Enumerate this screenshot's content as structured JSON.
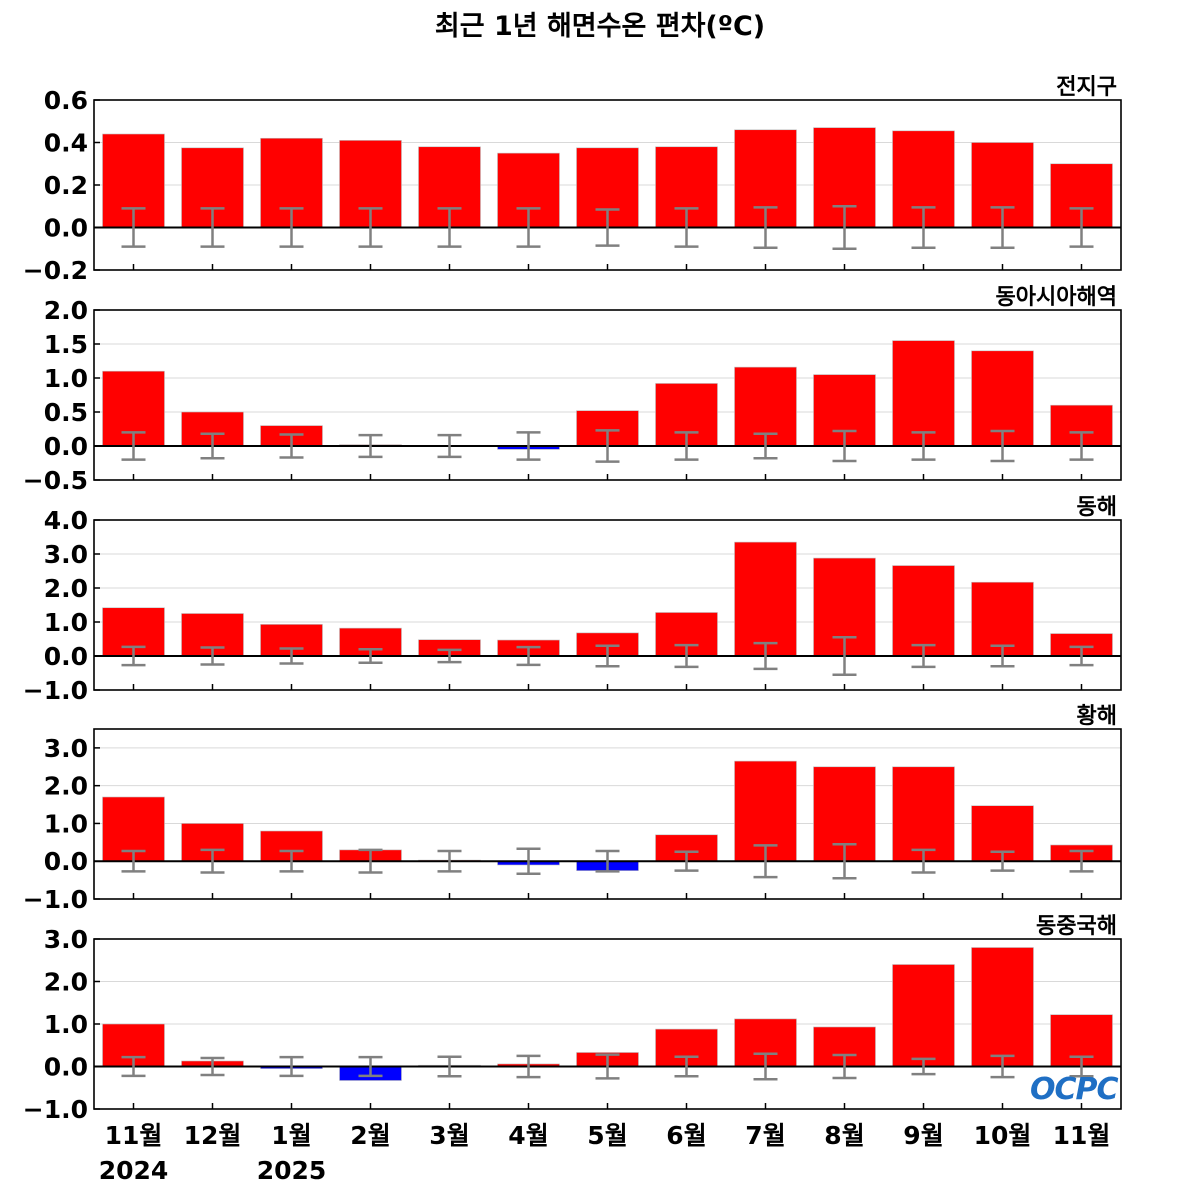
{
  "title": "최근 1년 해면수온 편차(ºC)",
  "logo_text": "OCPC",
  "colors": {
    "positive": "#ff0000",
    "negative": "#0000ff",
    "error_bar": "#808080",
    "zero_line": "#000000",
    "grid": "#d9d9d9"
  },
  "chart_data": [
    {
      "type": "bar",
      "title": "전지구",
      "categories": [
        "11월",
        "12월",
        "1월",
        "2월",
        "3월",
        "4월",
        "5월",
        "6월",
        "7월",
        "8월",
        "9월",
        "10월",
        "11월"
      ],
      "values": [
        0.44,
        0.375,
        0.42,
        0.41,
        0.38,
        0.35,
        0.375,
        0.38,
        0.46,
        0.47,
        0.455,
        0.4,
        0.3
      ],
      "error": [
        0.09,
        0.09,
        0.09,
        0.09,
        0.09,
        0.09,
        0.085,
        0.09,
        0.095,
        0.1,
        0.095,
        0.095,
        0.09
      ],
      "ylim": [
        -0.2,
        0.6
      ],
      "yticks": [
        "−0.2",
        "0.0",
        "0.2",
        "0.4",
        "0.6"
      ],
      "ytick_values": [
        -0.2,
        0.0,
        0.2,
        0.4,
        0.6
      ]
    },
    {
      "type": "bar",
      "title": "동아시아해역",
      "categories": [
        "11월",
        "12월",
        "1월",
        "2월",
        "3월",
        "4월",
        "5월",
        "6월",
        "7월",
        "8월",
        "9월",
        "10월",
        "11월"
      ],
      "values": [
        1.1,
        0.5,
        0.3,
        0.02,
        0.01,
        -0.05,
        0.52,
        0.92,
        1.16,
        1.05,
        1.55,
        1.4,
        0.6
      ],
      "error": [
        0.2,
        0.18,
        0.17,
        0.16,
        0.16,
        0.2,
        0.23,
        0.2,
        0.18,
        0.22,
        0.2,
        0.22,
        0.2
      ],
      "ylim": [
        -0.5,
        2.0
      ],
      "yticks": [
        "−0.5",
        "0.0",
        "0.5",
        "1.0",
        "1.5",
        "2.0"
      ],
      "ytick_values": [
        -0.5,
        0.0,
        0.5,
        1.0,
        1.5,
        2.0
      ]
    },
    {
      "type": "bar",
      "title": "동해",
      "categories": [
        "11월",
        "12월",
        "1월",
        "2월",
        "3월",
        "4월",
        "5월",
        "6월",
        "7월",
        "8월",
        "9월",
        "10월",
        "11월"
      ],
      "values": [
        1.42,
        1.25,
        0.93,
        0.82,
        0.48,
        0.47,
        0.68,
        1.28,
        3.35,
        2.88,
        2.66,
        2.17,
        0.66
      ],
      "error": [
        0.27,
        0.25,
        0.22,
        0.2,
        0.18,
        0.26,
        0.3,
        0.32,
        0.38,
        0.55,
        0.32,
        0.3,
        0.27
      ],
      "ylim": [
        -1.0,
        4.0
      ],
      "yticks": [
        "−1.0",
        "0.0",
        "1.0",
        "2.0",
        "3.0",
        "4.0"
      ],
      "ytick_values": [
        -1.0,
        0.0,
        1.0,
        2.0,
        3.0,
        4.0
      ]
    },
    {
      "type": "bar",
      "title": "황해",
      "categories": [
        "11월",
        "12월",
        "1월",
        "2월",
        "3월",
        "4월",
        "5월",
        "6월",
        "7월",
        "8월",
        "9월",
        "10월",
        "11월"
      ],
      "values": [
        1.7,
        1.0,
        0.8,
        0.3,
        0.03,
        -0.1,
        -0.25,
        0.7,
        2.65,
        2.5,
        2.5,
        1.47,
        0.43
      ],
      "error": [
        0.27,
        0.3,
        0.27,
        0.3,
        0.27,
        0.33,
        0.27,
        0.25,
        0.42,
        0.45,
        0.3,
        0.25,
        0.27
      ],
      "ylim": [
        -1.0,
        3.5
      ],
      "yticks": [
        "−1.0",
        "0.0",
        "1.0",
        "2.0",
        "3.0"
      ],
      "ytick_values": [
        -1.0,
        0.0,
        1.0,
        2.0,
        3.0
      ]
    },
    {
      "type": "bar",
      "title": "동중국해",
      "categories": [
        "11월",
        "12월",
        "1월",
        "2월",
        "3월",
        "4월",
        "5월",
        "6월",
        "7월",
        "8월",
        "9월",
        "10월",
        "11월"
      ],
      "values": [
        1.0,
        0.13,
        -0.05,
        -0.33,
        0.03,
        0.06,
        0.33,
        0.88,
        1.12,
        0.93,
        2.4,
        2.8,
        1.22
      ],
      "error": [
        0.22,
        0.2,
        0.22,
        0.22,
        0.23,
        0.25,
        0.28,
        0.23,
        0.3,
        0.27,
        0.18,
        0.25,
        0.23
      ],
      "ylim": [
        -1.0,
        3.0
      ],
      "yticks": [
        "−1.0",
        "0.0",
        "1.0",
        "2.0",
        "3.0"
      ],
      "ytick_values": [
        -1.0,
        0.0,
        1.0,
        2.0,
        3.0
      ]
    }
  ],
  "x_axis": {
    "month_labels": [
      "11월",
      "12월",
      "1월",
      "2월",
      "3월",
      "4월",
      "5월",
      "6월",
      "7월",
      "8월",
      "9월",
      "10월",
      "11월"
    ],
    "year_labels": [
      {
        "index": 0,
        "text": "2024"
      },
      {
        "index": 2,
        "text": "2025"
      }
    ]
  }
}
